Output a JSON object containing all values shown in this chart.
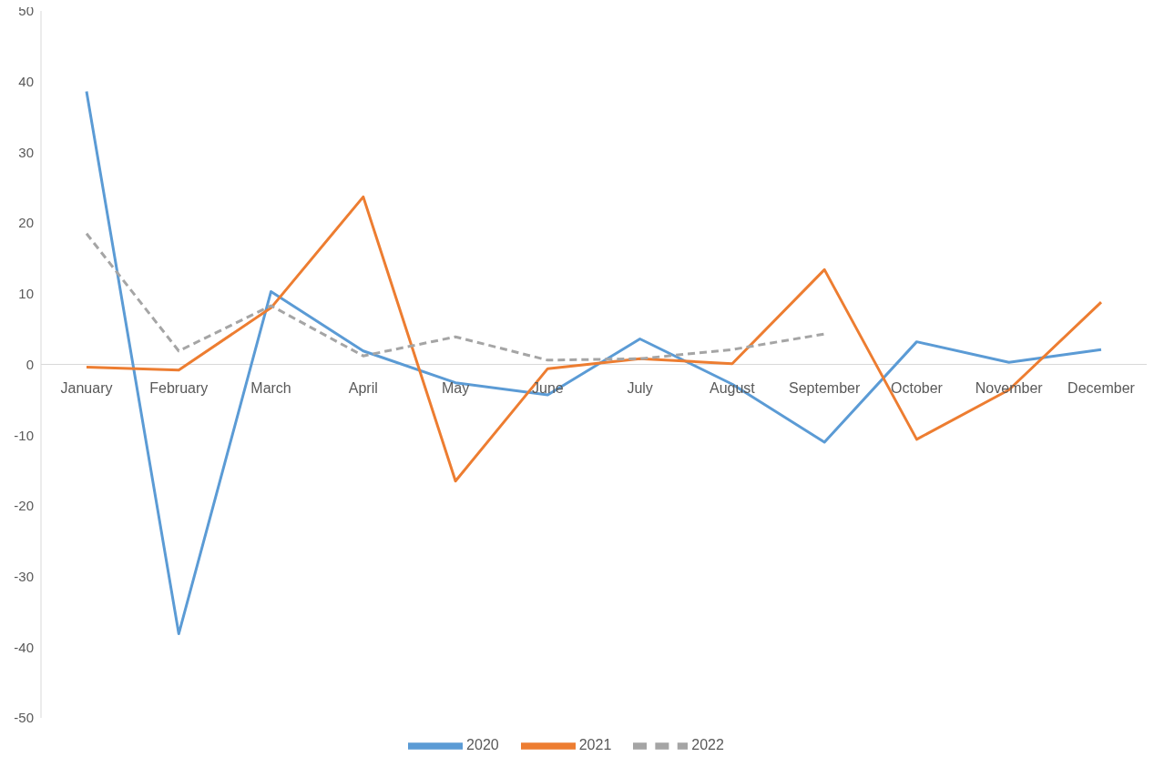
{
  "chart_data": {
    "type": "line",
    "categories": [
      "January",
      "February",
      "March",
      "April",
      "May",
      "June",
      "July",
      "August",
      "September",
      "October",
      "November",
      "December"
    ],
    "series": [
      {
        "name": "2020",
        "color": "#5b9bd5",
        "line_style": "solid",
        "values": [
          38.6,
          -38.1,
          10.3,
          1.9,
          -2.6,
          -4.3,
          3.6,
          -2.8,
          -11.0,
          3.2,
          0.3,
          2.1
        ]
      },
      {
        "name": "2021",
        "color": "#ed7d31",
        "line_style": "solid",
        "values": [
          -0.4,
          -0.8,
          8.0,
          23.7,
          -16.5,
          -0.6,
          0.8,
          0.1,
          13.4,
          -10.6,
          -3.6,
          8.8
        ]
      },
      {
        "name": "2022",
        "color": "#a5a5a5",
        "line_style": "dashed",
        "values": [
          18.5,
          1.9,
          8.3,
          1.2,
          3.9,
          0.6,
          0.8,
          2.1,
          4.3,
          null,
          null,
          null
        ]
      }
    ],
    "ylim": [
      -50,
      50
    ],
    "yticks": [
      -50,
      -40,
      -30,
      -20,
      -10,
      0,
      10,
      20,
      30,
      40,
      50
    ],
    "grid": false,
    "legend": "bottom",
    "marker": "none"
  }
}
